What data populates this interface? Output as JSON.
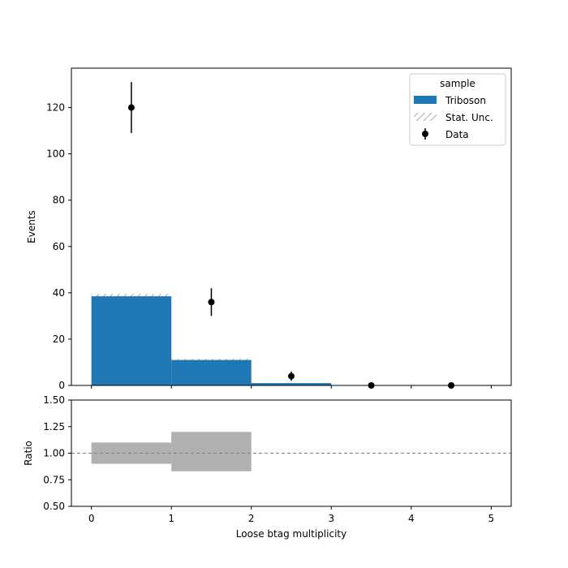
{
  "chart_data": [
    {
      "type": "bar",
      "panel": "main",
      "ylabel": "Events",
      "xlim": [
        -0.25,
        5.25
      ],
      "ylim": [
        0,
        137
      ],
      "yticks": [
        0,
        20,
        40,
        60,
        80,
        100,
        120
      ],
      "bin_edges": [
        0,
        1,
        2,
        3,
        4,
        5
      ],
      "series": [
        {
          "name": "Triboson",
          "kind": "stacked-histogram",
          "color": "#1f77b4",
          "values": [
            38.5,
            11.0,
            1.0,
            0.0,
            0.0
          ]
        },
        {
          "name": "Stat. Unc.",
          "kind": "hatched-band",
          "color": "#808080",
          "values": [
            2.0,
            1.0,
            0.2,
            0.0,
            0.0
          ]
        },
        {
          "name": "Data",
          "kind": "points-with-errors",
          "color": "#000000",
          "x": [
            0.5,
            1.5,
            2.5,
            3.5,
            4.5
          ],
          "y": [
            120,
            36,
            4,
            0,
            0
          ],
          "yerr": [
            11.0,
            6.0,
            2.0,
            0,
            0
          ]
        }
      ],
      "legend": {
        "title": "sample",
        "placement": "top-right",
        "entries": [
          "Triboson",
          "Stat. Unc.",
          "Data"
        ]
      },
      "grid": false
    },
    {
      "type": "bar",
      "panel": "ratio",
      "xlabel": "Loose btag multiplicity",
      "ylabel": "Ratio",
      "xlim": [
        -0.25,
        5.25
      ],
      "ylim": [
        0.5,
        1.5
      ],
      "yticks": [
        "0.50",
        "0.75",
        "1.00",
        "1.25",
        "1.50"
      ],
      "xticks": [
        "0",
        "1",
        "2",
        "3",
        "4",
        "5"
      ],
      "reference_line": 1.0,
      "series": [
        {
          "name": "Stat. Unc.",
          "kind": "uncertainty-band",
          "color": "#b0b0b0",
          "bins": [
            [
              0,
              1
            ],
            [
              1,
              2
            ]
          ],
          "low": [
            0.9,
            0.83
          ],
          "high": [
            1.1,
            1.2
          ]
        }
      ],
      "grid": false
    }
  ]
}
